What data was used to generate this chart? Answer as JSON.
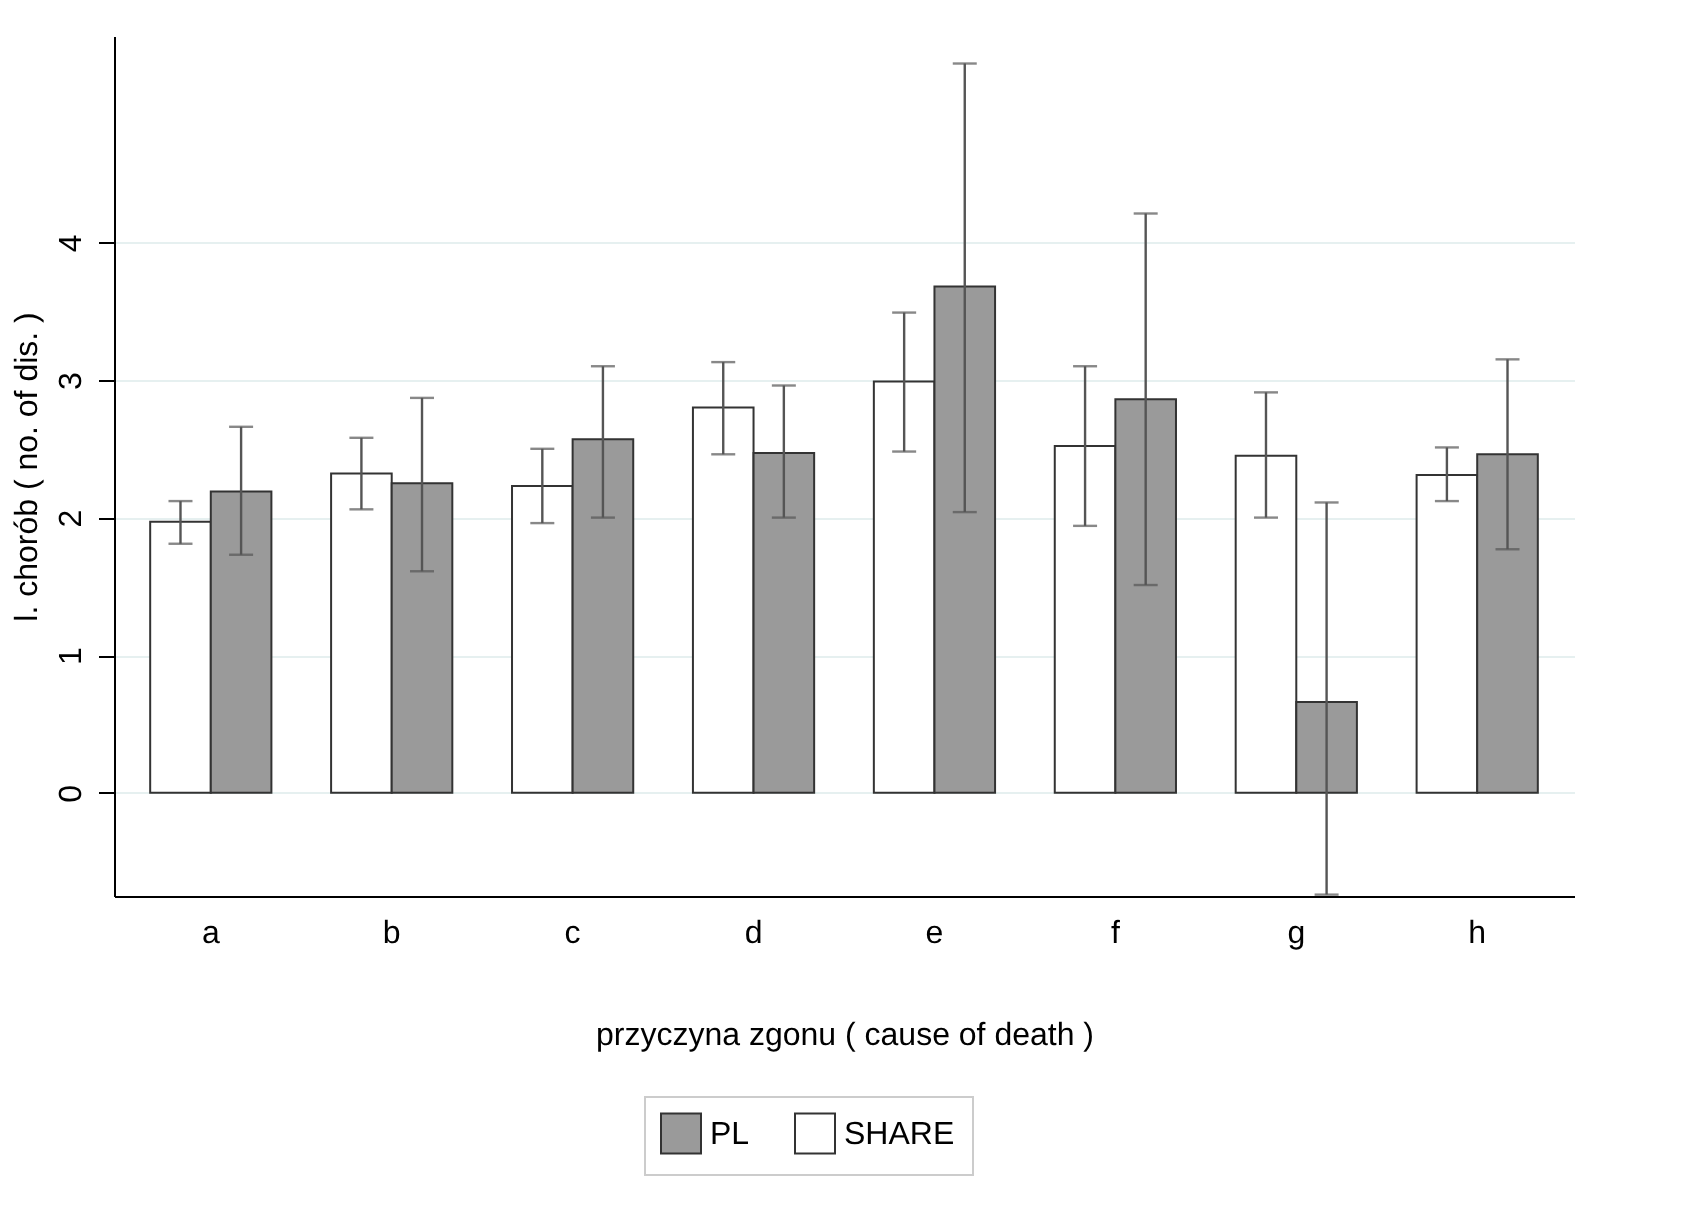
{
  "chart_data": {
    "type": "bar",
    "xlabel": "przyczyna zgonu ( cause of death )",
    "ylabel": "l. chorób ( no. of dis. )",
    "categories": [
      "a",
      "b",
      "c",
      "d",
      "e",
      "f",
      "g",
      "h"
    ],
    "ylim": [
      -0.75,
      5.5
    ],
    "yticks": [
      0,
      1,
      2,
      3,
      4
    ],
    "grid": "y",
    "legend": "bottom",
    "series": [
      {
        "name": "SHARE",
        "color": "#ffffff",
        "values": [
          1.97,
          2.32,
          2.23,
          2.8,
          2.99,
          2.52,
          2.45,
          2.31
        ],
        "errors": [
          [
            1.81,
            2.12
          ],
          [
            2.06,
            2.58
          ],
          [
            1.96,
            2.5
          ],
          [
            2.46,
            3.13
          ],
          [
            2.48,
            3.49
          ],
          [
            1.94,
            3.1
          ],
          [
            2.0,
            2.91
          ],
          [
            2.12,
            2.51
          ]
        ]
      },
      {
        "name": "PL",
        "color": "#9a9a9a",
        "values": [
          2.19,
          2.25,
          2.57,
          2.47,
          3.68,
          2.86,
          0.66,
          2.46
        ],
        "errors": [
          [
            1.73,
            2.66
          ],
          [
            1.61,
            2.87
          ],
          [
            2.0,
            3.1
          ],
          [
            2.0,
            2.96
          ],
          [
            2.04,
            5.3
          ],
          [
            1.51,
            4.21
          ],
          [
            -0.74,
            2.11
          ],
          [
            1.77,
            3.15
          ]
        ]
      }
    ]
  }
}
